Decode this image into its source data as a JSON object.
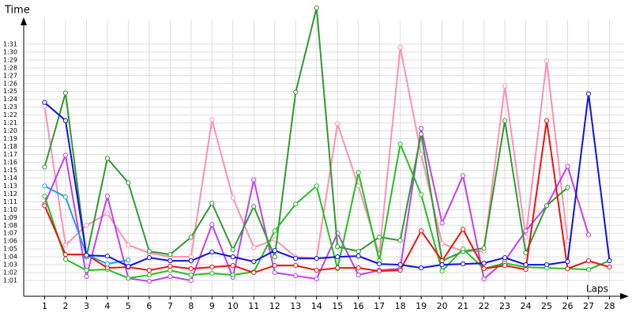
{
  "chart_data": {
    "type": "line",
    "y_label": "Time",
    "x_label": "Laps",
    "x": [
      1,
      2,
      3,
      4,
      5,
      6,
      7,
      8,
      9,
      10,
      11,
      12,
      13,
      14,
      15,
      16,
      17,
      18,
      19,
      20,
      21,
      22,
      23,
      24,
      25,
      26,
      27,
      28
    ],
    "xlim": [
      0,
      28.7
    ],
    "xticks": [
      1,
      2,
      3,
      4,
      5,
      6,
      7,
      8,
      9,
      10,
      11,
      12,
      13,
      14,
      15,
      16,
      17,
      18,
      19,
      20,
      21,
      22,
      23,
      24,
      25,
      26,
      27,
      28
    ],
    "ylim": [
      59,
      94
    ],
    "yticks": [
      {
        "value": 61,
        "label": "1:01"
      },
      {
        "value": 62,
        "label": "1:02"
      },
      {
        "value": 63,
        "label": "1:03"
      },
      {
        "value": 64,
        "label": "1:04"
      },
      {
        "value": 65,
        "label": "1:05"
      },
      {
        "value": 66,
        "label": "1:06"
      },
      {
        "value": 67,
        "label": "1:07"
      },
      {
        "value": 68,
        "label": "1:08"
      },
      {
        "value": 69,
        "label": "1:09"
      },
      {
        "value": 70,
        "label": "1:10"
      },
      {
        "value": 71,
        "label": "1:11"
      },
      {
        "value": 72,
        "label": "1:12"
      },
      {
        "value": 73,
        "label": "1:13"
      },
      {
        "value": 74,
        "label": "1:14"
      },
      {
        "value": 75,
        "label": "1:15"
      },
      {
        "value": 76,
        "label": "1:16"
      },
      {
        "value": 77,
        "label": "1:17"
      },
      {
        "value": 78,
        "label": "1:18"
      },
      {
        "value": 79,
        "label": "1:19"
      },
      {
        "value": 80,
        "label": "1:20"
      },
      {
        "value": 81,
        "label": "1:21"
      },
      {
        "value": 82,
        "label": "1:22"
      },
      {
        "value": 83,
        "label": "1:23"
      },
      {
        "value": 84,
        "label": "1:24"
      },
      {
        "value": 85,
        "label": "1:25"
      },
      {
        "value": 86,
        "label": "1:26"
      },
      {
        "value": 87,
        "label": "1:27"
      },
      {
        "value": 88,
        "label": "1:28"
      },
      {
        "value": 89,
        "label": "1:29"
      },
      {
        "value": 90,
        "label": "1:30"
      },
      {
        "value": 91,
        "label": "1:31"
      }
    ],
    "grid": true,
    "series": [
      {
        "color": "#ff8fb0",
        "values": [
          83.1,
          65.5,
          68.0,
          69.5,
          65.5,
          64.5,
          64.0,
          64.0,
          81.4,
          71.5,
          65.2,
          66.2,
          64.0,
          63.8,
          80.9,
          73.0,
          64.3,
          90.6,
          77.0,
          65.7,
          64.7,
          64.7,
          85.7,
          66.5,
          88.9,
          66.0,
          null,
          null
        ]
      },
      {
        "color": "#c040f0",
        "values": [
          70.7,
          76.9,
          61.5,
          71.7,
          61.3,
          60.9,
          61.5,
          61.0,
          68.1,
          61.4,
          73.8,
          62.0,
          61.6,
          61.2,
          67.0,
          61.7,
          62.3,
          62.5,
          80.3,
          68.3,
          74.3,
          61.2,
          63.5,
          67.3,
          70.5,
          75.5,
          66.8,
          null
        ]
      },
      {
        "color": "#2e9a2e",
        "values": [
          75.4,
          84.8,
          64.0,
          76.5,
          73.4,
          64.7,
          64.3,
          66.5,
          70.8,
          64.9,
          70.4,
          64.0,
          84.9,
          95.6,
          65.3,
          64.7,
          66.5,
          66.1,
          79.6,
          63.5,
          64.7,
          65.1,
          81.3,
          64.5,
          70.5,
          72.8,
          null,
          null
        ]
      },
      {
        "color": "#22c022",
        "values": [
          71.7,
          63.7,
          62.3,
          62.4,
          61.3,
          61.7,
          62.3,
          61.7,
          61.9,
          61.7,
          62.1,
          67.3,
          70.7,
          73.0,
          62.5,
          74.7,
          63.5,
          78.3,
          71.9,
          62.2,
          65.0,
          62.5,
          63.2,
          62.7,
          62.6,
          62.5,
          62.4,
          63.5
        ]
      },
      {
        "color": "#ee1111",
        "values": [
          70.5,
          64.3,
          64.3,
          62.6,
          62.7,
          62.3,
          62.8,
          62.5,
          62.7,
          62.9,
          62.0,
          62.9,
          62.9,
          62.3,
          62.6,
          62.6,
          62.2,
          62.3,
          67.3,
          63.5,
          67.5,
          62.5,
          62.9,
          62.4,
          81.3,
          62.5,
          63.5,
          62.7
        ]
      },
      {
        "color": "#1aa0ee",
        "values": [
          73.0,
          71.6,
          64.3,
          63.1,
          63.6,
          null,
          null,
          null,
          null,
          null,
          null,
          null,
          null,
          null,
          null,
          null,
          null,
          null,
          null,
          null,
          null,
          null,
          null,
          null,
          null,
          null,
          null,
          null
        ]
      },
      {
        "color": "#1010e0",
        "values": [
          83.6,
          81.3,
          64.2,
          64.1,
          62.8,
          63.9,
          63.5,
          63.5,
          64.6,
          64.0,
          63.4,
          64.8,
          63.8,
          63.8,
          64.0,
          64.1,
          63.1,
          63.0,
          62.6,
          63.0,
          63.1,
          63.2,
          63.9,
          63.0,
          63.0,
          63.4,
          84.7,
          63.5
        ]
      }
    ]
  }
}
